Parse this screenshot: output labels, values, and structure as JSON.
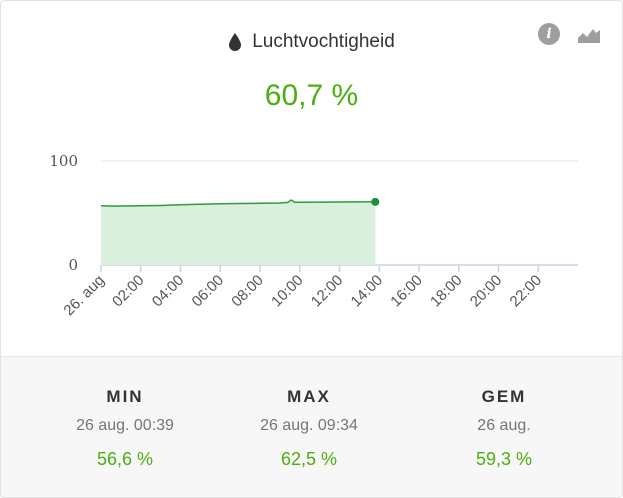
{
  "card": {
    "title": "Luchtvochtigheid",
    "current_value": "60,7 %",
    "icons": {
      "title_icon": "water-drop-icon",
      "info": "info-icon",
      "chart": "area-chart-icon"
    },
    "info_glyph": "i"
  },
  "chart_data": {
    "type": "area",
    "title": "",
    "xlabel": "",
    "ylabel": "",
    "ylim": [
      0,
      100
    ],
    "y_ticks": [
      "100",
      "0"
    ],
    "x_ticks": [
      "26. aug",
      "02:00",
      "04:00",
      "06:00",
      "08:00",
      "10:00",
      "12:00",
      "14:00",
      "16:00",
      "18:00",
      "20:00",
      "22:00"
    ],
    "x_range_hours": [
      0,
      24
    ],
    "grid": true,
    "series": [
      {
        "x_hours": [
          0,
          0.65,
          1,
          2,
          3,
          4,
          5,
          6,
          7,
          8,
          9,
          9.4,
          9.57,
          9.75,
          10,
          11,
          12,
          13,
          13.8
        ],
        "values": [
          57.0,
          56.6,
          56.7,
          56.9,
          57.2,
          57.9,
          58.4,
          58.8,
          59.1,
          59.3,
          59.6,
          60.2,
          62.5,
          60.3,
          60.4,
          60.5,
          60.6,
          60.7,
          60.7
        ]
      }
    ],
    "colors": {
      "line": "#2e9a3e",
      "fill": "#d9f0df",
      "end_marker": "#1f8f3a"
    }
  },
  "footer": {
    "stats": [
      {
        "label": "MIN",
        "time": "26 aug. 00:39",
        "value": "56,6 %"
      },
      {
        "label": "MAX",
        "time": "26 aug. 09:34",
        "value": "62,5 %"
      },
      {
        "label": "GEM",
        "time": "26 aug.",
        "value": "59,3 %"
      }
    ]
  },
  "colors": {
    "accent": "#4caf10",
    "text": "#333333",
    "muted": "#757575",
    "footer_bg": "#f7f7f7"
  }
}
